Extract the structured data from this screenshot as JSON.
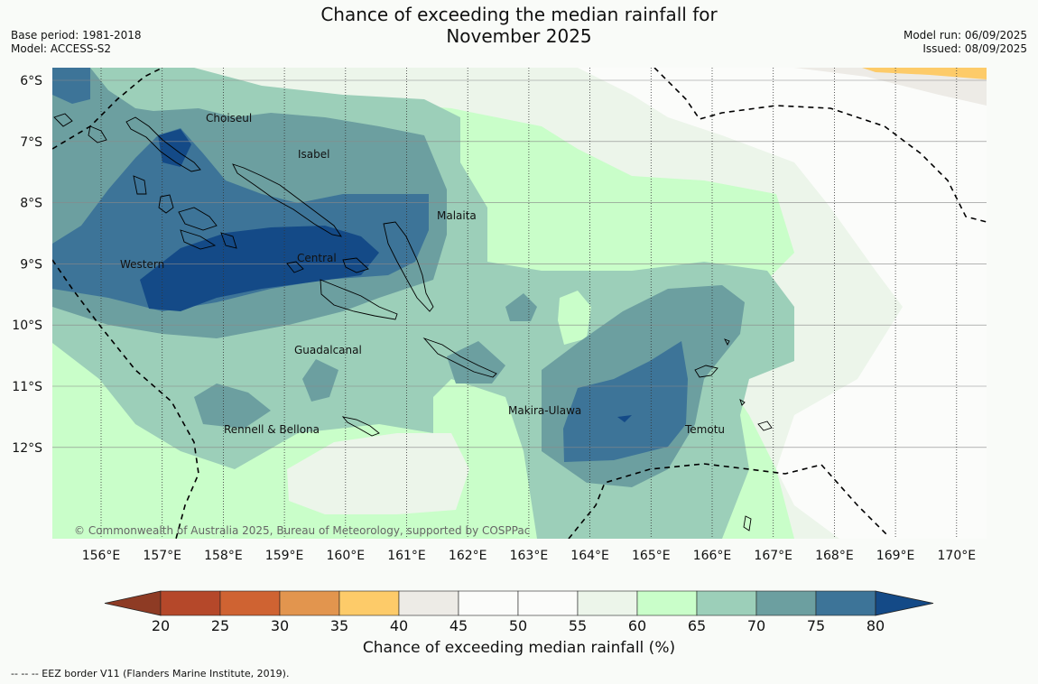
{
  "title_line1": "Chance of exceeding the median rainfall for",
  "title_line2": "November 2025",
  "base_period": "Base period: 1981-2018",
  "model": "Model: ACCESS-S2",
  "model_run": "Model run: 06/09/2025",
  "issued": "Issued: 08/09/2025",
  "copyright": "© Commonwealth of Australia 2025, Bureau of Meteorology, supported by COSPPac",
  "colorbar_title": "Chance of exceeding median rainfall (%)",
  "footer": "--  --  -- EEZ border V11 (Flanders Marine Institute, 2019).",
  "lat_labels": [
    "6°S",
    "7°S",
    "8°S",
    "9°S",
    "10°S",
    "11°S",
    "12°S"
  ],
  "lon_labels": [
    "156°E",
    "157°E",
    "158°E",
    "159°E",
    "160°E",
    "161°E",
    "162°E",
    "163°E",
    "164°E",
    "165°E",
    "166°E",
    "167°E",
    "168°E",
    "169°E",
    "170°E"
  ],
  "regions": {
    "choiseul": "Choiseul",
    "isabel": "Isabel",
    "malaita": "Malaita",
    "western": "Western",
    "central": "Central",
    "guadalcanal": "Guadalcanal",
    "rennell": "Rennell & Bellona",
    "makira": "Makira-Ulawa",
    "temotu": "Temotu"
  },
  "colorbar": {
    "ticks": [
      "20",
      "25",
      "30",
      "35",
      "40",
      "45",
      "50",
      "55",
      "60",
      "65",
      "70",
      "75",
      "80"
    ],
    "colors": [
      "#8e3b24",
      "#b5482a",
      "#cf6332",
      "#e2954e",
      "#fdcb69",
      "#edebe6",
      "#fbfcfa",
      "#fbfcfa",
      "#ecf5ea",
      "#c9fec9",
      "#9ccfb9",
      "#6c9fa0",
      "#3d7498",
      "#144a87"
    ]
  },
  "colors": {
    "c45": "#edebe6",
    "c50": "#fbfcfa",
    "c55": "#ecf5ea",
    "c60": "#c9fec9",
    "c65": "#9ccfb9",
    "c70": "#6c9fa0",
    "c75": "#3d7498",
    "c80": "#144a87",
    "c35": "#fdcb69"
  }
}
